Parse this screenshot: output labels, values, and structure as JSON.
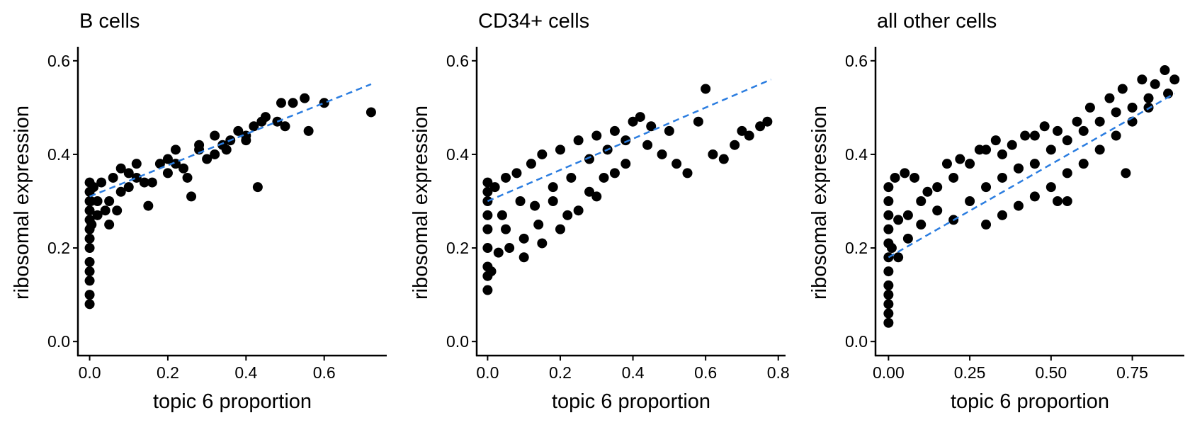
{
  "chart_data": [
    {
      "type": "scatter",
      "title": "B cells",
      "xlabel": "topic 6 proportion",
      "ylabel": "ribosomal expression",
      "xlim": [
        -0.03,
        0.76
      ],
      "ylim": [
        -0.03,
        0.63
      ],
      "xticks": [
        0.0,
        0.2,
        0.4,
        0.6
      ],
      "xtick_labels": [
        "0.0",
        "0.2",
        "0.4",
        "0.6"
      ],
      "yticks": [
        0.0,
        0.2,
        0.4,
        0.6
      ],
      "ytick_labels": [
        "0.0",
        "0.2",
        "0.4",
        "0.6"
      ],
      "fit_line": {
        "x": [
          0.0,
          0.72
        ],
        "y": [
          0.31,
          0.55
        ],
        "color": "#2b7de0",
        "style": "dashed"
      },
      "points": {
        "x": [
          0,
          0,
          0,
          0,
          0,
          0,
          0,
          0,
          0,
          0,
          0,
          0,
          0,
          0.003,
          0.005,
          0.01,
          0.02,
          0.03,
          0.04,
          0.05,
          0.06,
          0.07,
          0.08,
          0.1,
          0.12,
          0.14,
          0.15,
          0.18,
          0.2,
          0.22,
          0.25,
          0.26,
          0.28,
          0.3,
          0.32,
          0.35,
          0.38,
          0.4,
          0.42,
          0.43,
          0.45,
          0.48,
          0.49,
          0.5,
          0.52,
          0.55,
          0.56,
          0.6,
          0.72,
          0.02,
          0.05,
          0.08,
          0.12,
          0.16,
          0.2,
          0.24,
          0.28,
          0.32,
          0.36,
          0.4,
          0.1,
          0.22,
          0.34,
          0.44
        ],
        "y": [
          0.08,
          0.1,
          0.13,
          0.15,
          0.17,
          0.2,
          0.22,
          0.24,
          0.26,
          0.28,
          0.3,
          0.32,
          0.34,
          0.3,
          0.25,
          0.33,
          0.3,
          0.34,
          0.28,
          0.25,
          0.35,
          0.28,
          0.37,
          0.33,
          0.38,
          0.34,
          0.29,
          0.38,
          0.36,
          0.41,
          0.35,
          0.31,
          0.42,
          0.39,
          0.44,
          0.41,
          0.45,
          0.43,
          0.46,
          0.33,
          0.48,
          0.47,
          0.51,
          0.46,
          0.51,
          0.52,
          0.45,
          0.51,
          0.49,
          0.27,
          0.3,
          0.32,
          0.35,
          0.34,
          0.39,
          0.37,
          0.41,
          0.4,
          0.43,
          0.44,
          0.36,
          0.38,
          0.42,
          0.47
        ]
      }
    },
    {
      "type": "scatter",
      "title": "CD34+ cells",
      "xlabel": "topic 6 proportion",
      "ylabel": "ribosomal expression",
      "xlim": [
        -0.03,
        0.82
      ],
      "ylim": [
        -0.03,
        0.63
      ],
      "xticks": [
        0.0,
        0.2,
        0.4,
        0.6,
        0.8
      ],
      "xtick_labels": [
        "0.0",
        "0.2",
        "0.4",
        "0.6",
        "0.8"
      ],
      "yticks": [
        0.0,
        0.2,
        0.4,
        0.6
      ],
      "ytick_labels": [
        "0.0",
        "0.2",
        "0.4",
        "0.6"
      ],
      "fit_line": {
        "x": [
          0.0,
          0.78
        ],
        "y": [
          0.3,
          0.56
        ],
        "color": "#2b7de0",
        "style": "dashed"
      },
      "points": {
        "x": [
          0,
          0,
          0,
          0,
          0,
          0,
          0,
          0,
          0,
          0.01,
          0.02,
          0.03,
          0.05,
          0.06,
          0.08,
          0.1,
          0.12,
          0.14,
          0.15,
          0.18,
          0.2,
          0.22,
          0.25,
          0.28,
          0.3,
          0.32,
          0.35,
          0.38,
          0.4,
          0.42,
          0.44,
          0.45,
          0.48,
          0.5,
          0.52,
          0.55,
          0.58,
          0.6,
          0.62,
          0.65,
          0.68,
          0.7,
          0.72,
          0.75,
          0.77,
          0.05,
          0.1,
          0.15,
          0.2,
          0.25,
          0.3,
          0.35,
          0.04,
          0.09,
          0.13,
          0.18,
          0.23,
          0.28,
          0.33,
          0.38
        ],
        "y": [
          0.11,
          0.14,
          0.16,
          0.2,
          0.24,
          0.27,
          0.3,
          0.32,
          0.34,
          0.15,
          0.33,
          0.19,
          0.35,
          0.2,
          0.36,
          0.18,
          0.38,
          0.25,
          0.4,
          0.3,
          0.41,
          0.27,
          0.43,
          0.32,
          0.44,
          0.35,
          0.45,
          0.38,
          0.47,
          0.48,
          0.42,
          0.46,
          0.4,
          0.45,
          0.38,
          0.36,
          0.47,
          0.54,
          0.4,
          0.39,
          0.42,
          0.45,
          0.44,
          0.46,
          0.47,
          0.24,
          0.22,
          0.21,
          0.24,
          0.28,
          0.31,
          0.36,
          0.27,
          0.3,
          0.29,
          0.33,
          0.35,
          0.39,
          0.41,
          0.43
        ]
      }
    },
    {
      "type": "scatter",
      "title": "all other cells",
      "xlabel": "topic 6 proportion",
      "ylabel": "ribosomal expression",
      "xlim": [
        -0.04,
        0.91
      ],
      "ylim": [
        -0.03,
        0.63
      ],
      "xticks": [
        0.0,
        0.25,
        0.5,
        0.75
      ],
      "xtick_labels": [
        "0.00",
        "0.25",
        "0.50",
        "0.75"
      ],
      "yticks": [
        0.0,
        0.2,
        0.4,
        0.6
      ],
      "ytick_labels": [
        "0.0",
        "0.2",
        "0.4",
        "0.6"
      ],
      "fit_line": {
        "x": [
          0.0,
          0.88
        ],
        "y": [
          0.18,
          0.53
        ],
        "color": "#2b7de0",
        "style": "dashed"
      },
      "points": {
        "x": [
          0,
          0,
          0,
          0,
          0,
          0,
          0,
          0,
          0,
          0,
          0,
          0,
          0.01,
          0.02,
          0.03,
          0.05,
          0.06,
          0.08,
          0.1,
          0.12,
          0.15,
          0.18,
          0.2,
          0.22,
          0.25,
          0.28,
          0.3,
          0.33,
          0.35,
          0.38,
          0.4,
          0.42,
          0.45,
          0.48,
          0.5,
          0.52,
          0.55,
          0.58,
          0.6,
          0.62,
          0.65,
          0.68,
          0.7,
          0.72,
          0.75,
          0.78,
          0.8,
          0.82,
          0.85,
          0.86,
          0.88,
          0.03,
          0.06,
          0.1,
          0.15,
          0.2,
          0.25,
          0.3,
          0.35,
          0.4,
          0.45,
          0.3,
          0.35,
          0.4,
          0.45,
          0.5,
          0.55,
          0.6,
          0.65,
          0.7,
          0.75,
          0.8,
          0.52,
          0.55,
          0.73
        ],
        "y": [
          0.04,
          0.06,
          0.08,
          0.1,
          0.12,
          0.15,
          0.18,
          0.21,
          0.24,
          0.27,
          0.3,
          0.33,
          0.2,
          0.35,
          0.18,
          0.36,
          0.22,
          0.35,
          0.25,
          0.32,
          0.28,
          0.38,
          0.26,
          0.39,
          0.3,
          0.41,
          0.33,
          0.43,
          0.35,
          0.42,
          0.37,
          0.44,
          0.38,
          0.46,
          0.41,
          0.45,
          0.43,
          0.47,
          0.45,
          0.5,
          0.47,
          0.52,
          0.49,
          0.54,
          0.5,
          0.56,
          0.52,
          0.55,
          0.58,
          0.53,
          0.56,
          0.26,
          0.27,
          0.3,
          0.33,
          0.35,
          0.38,
          0.41,
          0.4,
          0.37,
          0.44,
          0.25,
          0.27,
          0.29,
          0.31,
          0.33,
          0.36,
          0.38,
          0.41,
          0.44,
          0.47,
          0.5,
          0.3,
          0.3,
          0.36
        ]
      }
    }
  ]
}
